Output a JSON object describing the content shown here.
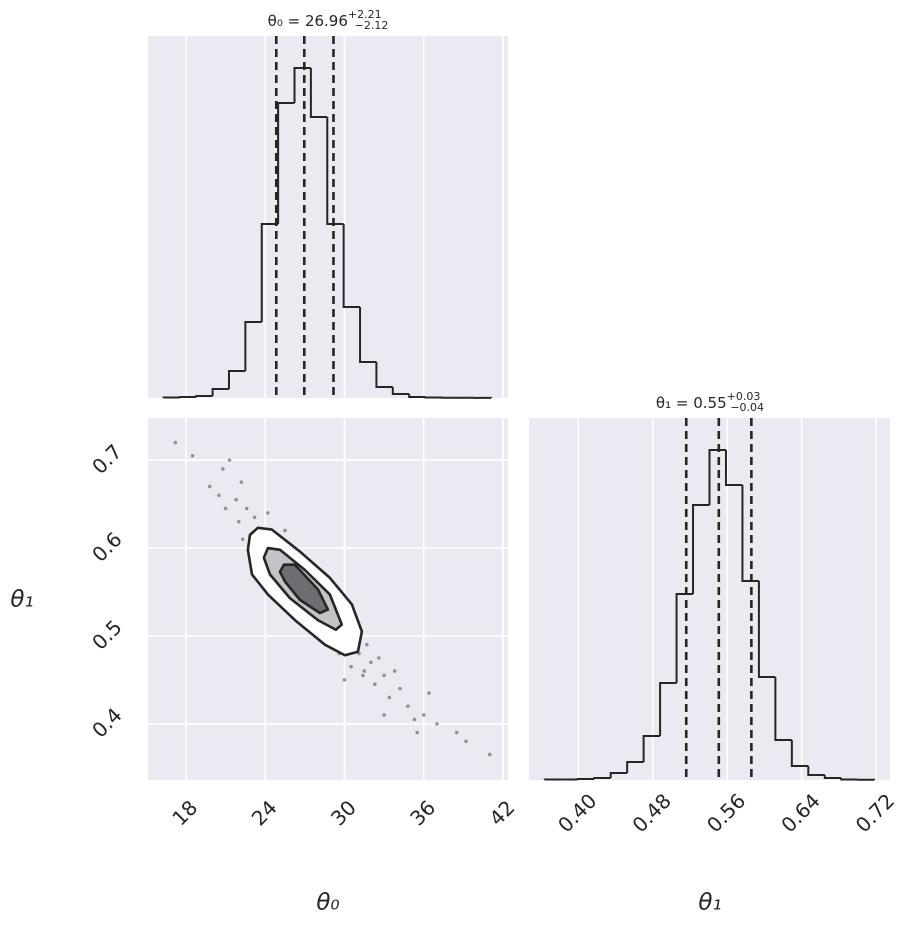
{
  "chart_data": [
    {
      "type": "histogram",
      "title": "θ₀ = 26.96",
      "title_upper": "+2.21",
      "title_lower": "−2.12",
      "bins": [
        16.3,
        17.54,
        18.78,
        20.02,
        21.26,
        22.5,
        23.74,
        24.98,
        26.22,
        27.46,
        28.7,
        29.94,
        31.18,
        32.42,
        33.66,
        34.9,
        36.14,
        37.38,
        38.62,
        39.86,
        41.1
      ],
      "counts": [
        0.5,
        1,
        2,
        9,
        27,
        76,
        174,
        295,
        330,
        281,
        174,
        91,
        36,
        11,
        4,
        1,
        0.5,
        0.3,
        0.2,
        0.1
      ],
      "quantiles": [
        24.84,
        26.96,
        29.17
      ],
      "xlim": [
        15.13,
        42.38
      ],
      "ylim": [
        0,
        362
      ],
      "color": "#262626",
      "background": "#eaeaf2",
      "grid": true
    },
    {
      "type": "scatter",
      "xlabel": "θ₀",
      "ylabel": "θ₁",
      "x": [
        17.2,
        18.5,
        19.8,
        20.5,
        21.0,
        21.3,
        21.8,
        22.0,
        22.3,
        22.6,
        22.9,
        23.2,
        23.5,
        23.8,
        24.0,
        24.2,
        24.5,
        24.7,
        25.0,
        25.2,
        25.5,
        25.8,
        26.0,
        26.3,
        26.5,
        26.8,
        27.0,
        27.3,
        27.5,
        27.8,
        28.0,
        28.3,
        28.5,
        28.8,
        29.0,
        29.3,
        29.6,
        29.9,
        30.2,
        30.5,
        30.8,
        31.1,
        31.4,
        31.7,
        32.0,
        32.3,
        32.6,
        33.0,
        33.4,
        33.8,
        34.2,
        34.8,
        35.3,
        36.0,
        36.4,
        37.0,
        38.5,
        39.2,
        41.0,
        20.8,
        22.2,
        24.0,
        25.5,
        30.0,
        31.5,
        33.0,
        35.5
      ],
      "y": [
        0.72,
        0.705,
        0.67,
        0.66,
        0.645,
        0.7,
        0.655,
        0.63,
        0.61,
        0.645,
        0.6,
        0.635,
        0.59,
        0.62,
        0.575,
        0.64,
        0.585,
        0.61,
        0.56,
        0.595,
        0.575,
        0.54,
        0.6,
        0.565,
        0.53,
        0.575,
        0.545,
        0.52,
        0.565,
        0.54,
        0.505,
        0.55,
        0.52,
        0.49,
        0.535,
        0.51,
        0.48,
        0.52,
        0.495,
        0.465,
        0.505,
        0.48,
        0.455,
        0.49,
        0.47,
        0.445,
        0.475,
        0.455,
        0.43,
        0.46,
        0.44,
        0.42,
        0.405,
        0.41,
        0.435,
        0.4,
        0.39,
        0.38,
        0.365,
        0.69,
        0.675,
        0.6,
        0.62,
        0.45,
        0.46,
        0.41,
        0.39
      ],
      "contours": [
        {
          "x": [
            22.85,
            23.45,
            24.51,
            26.63,
            28.9,
            30.56,
            31.32,
            31.02,
            30.03,
            28.52,
            26.25,
            24.21,
            23.0,
            22.69
          ],
          "y": [
            0.615,
            0.623,
            0.621,
            0.596,
            0.566,
            0.536,
            0.505,
            0.482,
            0.478,
            0.49,
            0.518,
            0.547,
            0.57,
            0.598
          ]
        },
        {
          "x": [
            24.21,
            25.12,
            27.01,
            28.9,
            29.8,
            29.35,
            27.99,
            25.87,
            24.36,
            23.9
          ],
          "y": [
            0.6,
            0.598,
            0.575,
            0.547,
            0.513,
            0.507,
            0.518,
            0.543,
            0.57,
            0.589
          ]
        },
        {
          "x": [
            25.42,
            26.25,
            27.99,
            28.75,
            28.14,
            26.63,
            25.49,
            25.12
          ],
          "y": [
            0.581,
            0.581,
            0.553,
            0.53,
            0.526,
            0.541,
            0.562,
            0.573
          ]
        }
      ],
      "contour_fills": [
        "#ffffff",
        "#c4c4c8",
        "#6e6e72"
      ],
      "color": "#262626",
      "background": "#eaeaf2",
      "grid": true,
      "xlim": [
        15.13,
        42.38
      ],
      "xticks": [
        18,
        24,
        30,
        36,
        42
      ],
      "ylim": [
        0.336,
        0.748
      ],
      "yticks": [
        0.4,
        0.5,
        0.6,
        0.7
      ]
    },
    {
      "type": "histogram",
      "title": "θ₁ = 0.55",
      "title_upper": "+0.03",
      "title_lower": "−0.04",
      "xlabel": "θ₁",
      "bins": [
        0.364,
        0.3817,
        0.3994,
        0.4171,
        0.4348,
        0.4525,
        0.4702,
        0.4879,
        0.5056,
        0.5233,
        0.541,
        0.5587,
        0.5764,
        0.5941,
        0.6118,
        0.6295,
        0.6472,
        0.6649,
        0.6826,
        0.7003,
        0.718
      ],
      "counts": [
        0.5,
        0.5,
        1,
        2,
        7,
        18,
        44,
        97,
        186,
        275,
        330,
        295,
        199,
        103,
        40,
        14,
        5,
        2,
        0.5,
        0.2
      ],
      "quantiles": [
        0.516,
        0.551,
        0.586
      ],
      "xlim": [
        0.347,
        0.735
      ],
      "ylim": [
        0,
        362
      ],
      "xticks": [
        {
          "value": 0.4,
          "label": "0.40"
        },
        {
          "value": 0.48,
          "label": "0.48"
        },
        {
          "value": 0.56,
          "label": "0.56"
        },
        {
          "value": 0.64,
          "label": "0.64"
        },
        {
          "value": 0.72,
          "label": "0.72"
        }
      ],
      "color": "#262626",
      "background": "#eaeaf2",
      "grid": true
    }
  ]
}
